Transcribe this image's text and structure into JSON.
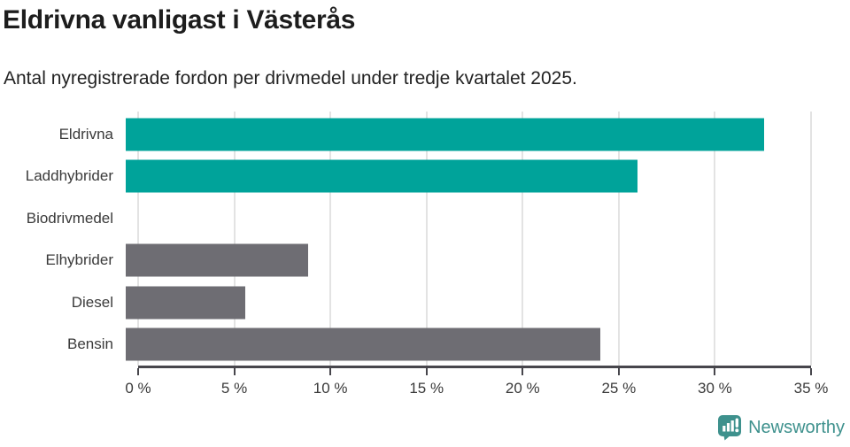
{
  "header": {
    "title": "Eldrivna vanligast i Västerås",
    "subtitle": "Antal nyregistrerade fordon per drivmedel under tredje kvartalet 2025."
  },
  "chart_data": {
    "type": "bar",
    "orientation": "horizontal",
    "title": "Eldrivna vanligast i Västerås",
    "subtitle": "Antal nyregistrerade fordon per drivmedel under tredje kvartalet 2025.",
    "categories": [
      "Eldrivna",
      "Laddhybrider",
      "Biodrivmedel",
      "Elhybrider",
      "Diesel",
      "Bensin"
    ],
    "values": [
      33.2,
      26.6,
      0,
      9.5,
      6.2,
      24.7
    ],
    "bar_colors": [
      "#00a39a",
      "#00a39a",
      "#00a39a",
      "#6e6d73",
      "#6e6d73",
      "#6e6d73"
    ],
    "xlabel": "",
    "ylabel": "",
    "xlim": [
      0,
      35
    ],
    "x_ticks": [
      0,
      5,
      10,
      15,
      20,
      25,
      30,
      35
    ],
    "x_tick_suffix": " %",
    "grid": true,
    "legend": false,
    "colors": {
      "teal": "#00a39a",
      "gray": "#6e6d73",
      "gridline": "#e3e3e3",
      "axis": "#47464c",
      "tick_label": "#3a3a3a"
    }
  },
  "footer": {
    "brand": "Newsworthy",
    "brand_color": "#3e918d",
    "logo_icon": "bar-chart-speech-bubble-icon"
  }
}
